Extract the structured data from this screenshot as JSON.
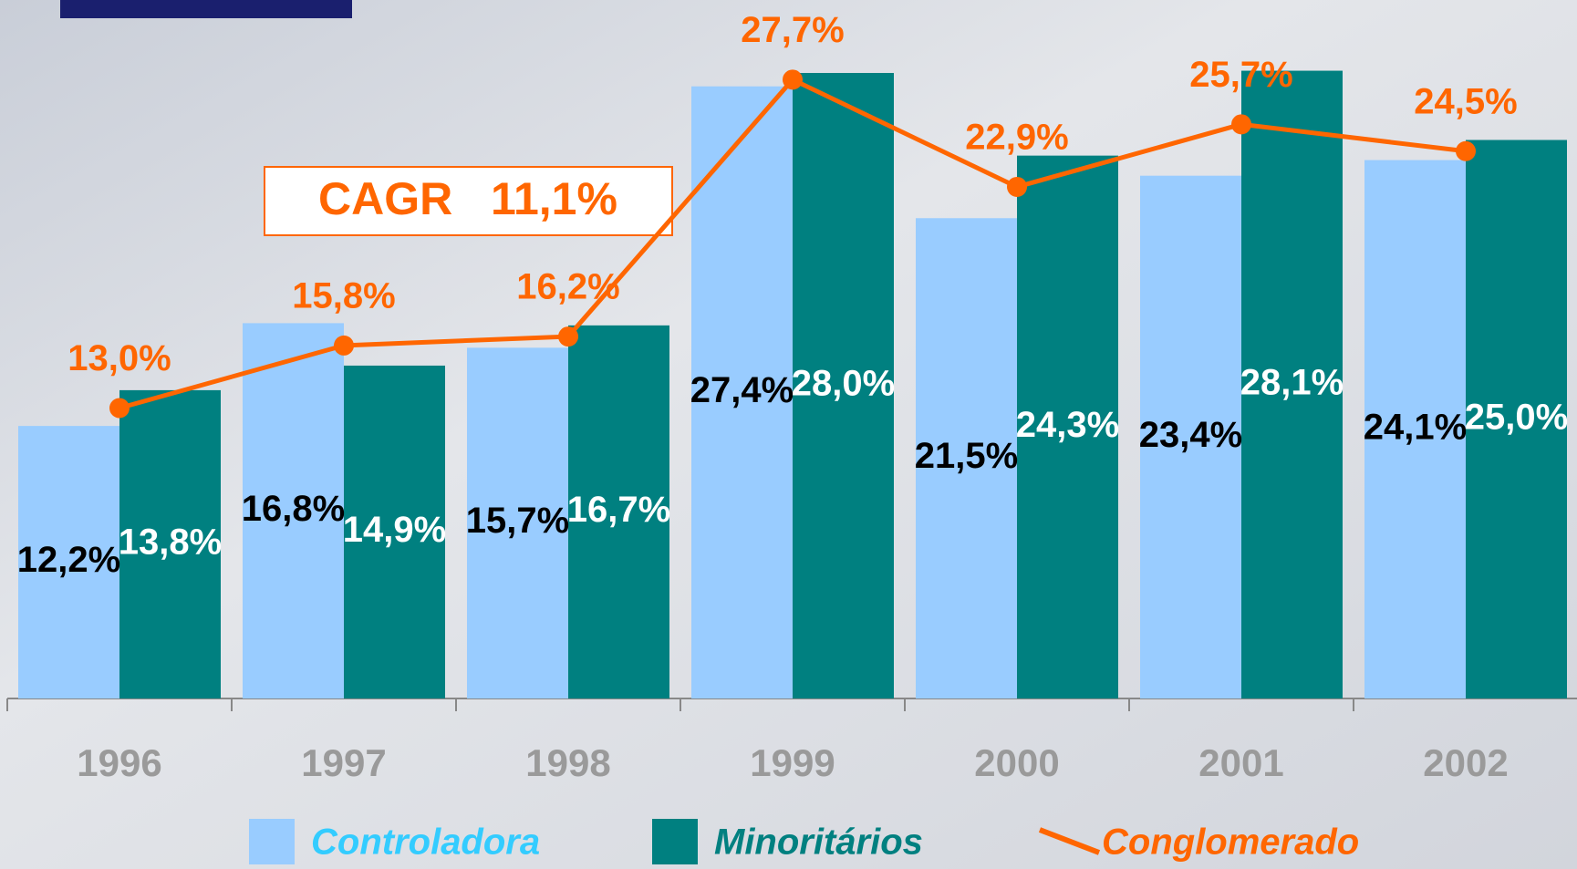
{
  "chart_data": {
    "type": "bar-line",
    "annotation": "CAGR   11,1%",
    "categories": [
      "1996",
      "1997",
      "1998",
      "1999",
      "2000",
      "2001",
      "2002"
    ],
    "series": [
      {
        "name": "Controladora",
        "type": "bar",
        "color": "#99ccff",
        "label_color": "#000000",
        "values": [
          12.2,
          16.8,
          15.7,
          27.4,
          21.5,
          23.4,
          24.1
        ],
        "value_labels": [
          "12,2%",
          "16,8%",
          "15,7%",
          "27,4%",
          "21,5%",
          "23,4%",
          "24,1%"
        ]
      },
      {
        "name": "Minoritários",
        "type": "bar",
        "color": "#008080",
        "label_color": "#ffffff",
        "values": [
          13.8,
          14.9,
          16.7,
          28.0,
          24.3,
          28.1,
          25.0
        ],
        "value_labels": [
          "13,8%",
          "14,9%",
          "16,7%",
          "28,0%",
          "24,3%",
          "28,1%",
          "25,0%"
        ]
      },
      {
        "name": "Conglomerado",
        "type": "line",
        "color": "#ff6600",
        "values": [
          13.0,
          15.8,
          16.2,
          27.7,
          22.9,
          25.7,
          24.5
        ],
        "value_labels": [
          "13,0%",
          "15,8%",
          "16,2%",
          "27,7%",
          "22,9%",
          "25,7%",
          "24,5%"
        ]
      }
    ],
    "ylim": [
      0,
      31
    ]
  }
}
